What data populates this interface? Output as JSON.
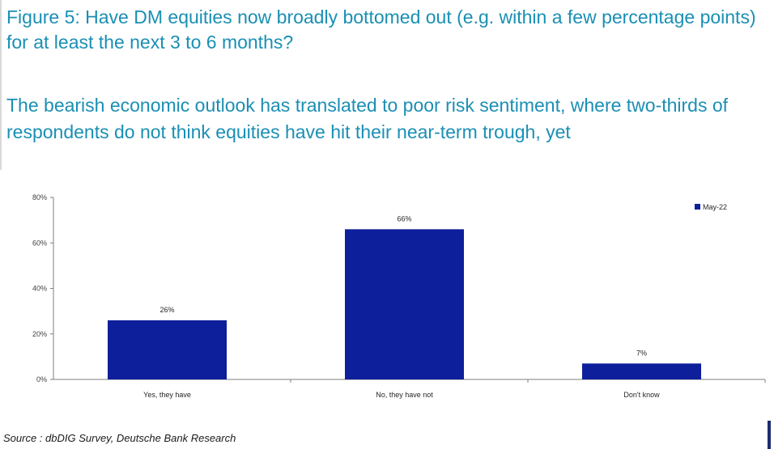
{
  "figure": {
    "title": "Figure 5: Have DM equities now broadly bottomed out (e.g. within a few percentage points) for at least the next 3 to 6 months?",
    "subtitle": "The bearish economic outlook has translated to poor risk sentiment, where two-thirds of respondents do not think equities have hit their near-term trough, yet",
    "source": "Source : dbDIG Survey, Deutsche Bank Research"
  },
  "colors": {
    "title": "#1a8fb4",
    "bar": "#0d1f9a",
    "axis": "#7f7f7f"
  },
  "chart_data": {
    "type": "bar",
    "categories": [
      "Yes, they have",
      "No, they have not",
      "Don't know"
    ],
    "series": [
      {
        "name": "May-22",
        "values": [
          26,
          66,
          7
        ]
      }
    ],
    "data_labels": [
      "26%",
      "66%",
      "7%"
    ],
    "y_ticks": [
      "0%",
      "20%",
      "40%",
      "60%",
      "80%"
    ],
    "ylim": [
      0,
      80
    ],
    "y_unit": "%",
    "grid": false,
    "legend_position": "top-right",
    "xlabel": "",
    "ylabel": ""
  }
}
